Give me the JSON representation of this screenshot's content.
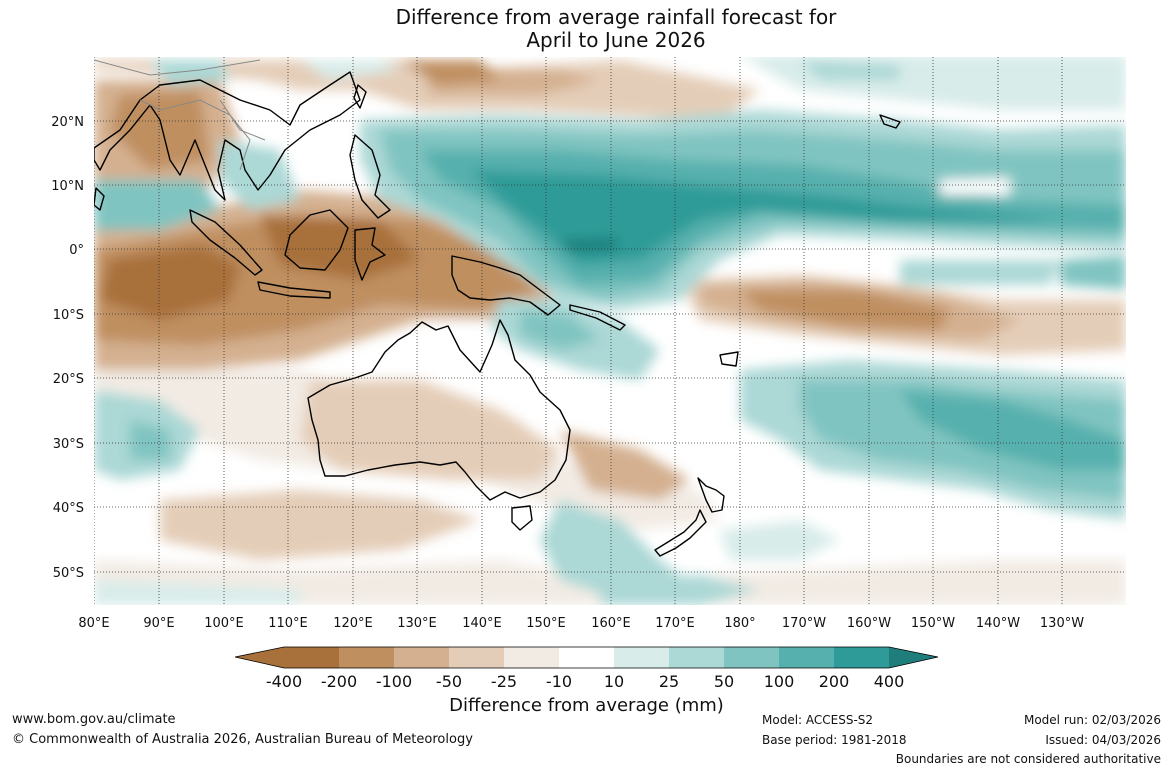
{
  "title": {
    "line1": "Difference from average rainfall forecast for",
    "line2": "April to June 2026"
  },
  "map": {
    "lat_labels": [
      "20°N",
      "10°N",
      "0°",
      "10°S",
      "20°S",
      "30°S",
      "40°S",
      "50°S"
    ],
    "lon_labels": [
      "80°E",
      "90°E",
      "100°E",
      "110°E",
      "120°E",
      "130°E",
      "140°E",
      "150°E",
      "160°E",
      "170°E",
      "180°",
      "170°W",
      "160°W",
      "150°W",
      "140°W",
      "130°W"
    ],
    "land_outline_color": "#000000"
  },
  "legend": {
    "title": "Difference from average (mm)",
    "labels": [
      "-400",
      "-200",
      "-100",
      "-50",
      "-25",
      "-10",
      "10",
      "25",
      "50",
      "100",
      "200",
      "400"
    ],
    "colors": [
      "#a8703a",
      "#bf8f60",
      "#d4b090",
      "#e4cdb8",
      "#f2ebe4",
      "#ffffff",
      "#d8ecea",
      "#acd8d6",
      "#80c4c1",
      "#56b0ad",
      "#2e9b98",
      "#1f7e7c"
    ]
  },
  "footer": {
    "website": "www.bom.gov.au/climate",
    "copyright": "© Commonwealth of Australia 2026, Australian Bureau of Meteorology",
    "model": "Model: ACCESS-S2",
    "base_period": "Base period: 1981-2018",
    "model_run": "Model run: 02/03/2026",
    "issued": "Issued: 04/03/2026",
    "disclaimer": "Boundaries are not considered authoritative"
  }
}
